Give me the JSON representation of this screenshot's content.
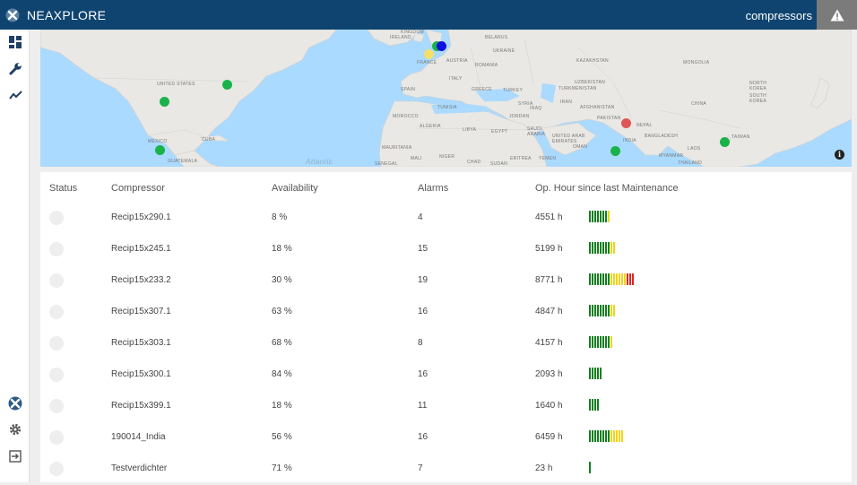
{
  "app": {
    "brand": "NEAXPLORE",
    "page_title": "compressors"
  },
  "sidebar": {
    "items": [
      {
        "icon": "dashboard-icon"
      },
      {
        "icon": "wrench-icon"
      },
      {
        "icon": "trend-icon"
      },
      {
        "icon": "logo-icon"
      },
      {
        "icon": "gear-icon"
      },
      {
        "icon": "logout-icon"
      }
    ]
  },
  "map": {
    "labels": {
      "united_states": "UNITED\nSTATES",
      "mexico": "MEXICO",
      "cuba": "CUBA",
      "guatemala": "GUATEMALA",
      "ireland": "IRELAND",
      "kingdom": "KINGDOM",
      "belarus": "BELARUS",
      "ukraine": "UKRAINE",
      "france": "FRANCE",
      "austria": "AUSTRIA",
      "romania": "ROMANIA",
      "spain": "SPAIN",
      "italy": "ITALY",
      "greece": "GREECE",
      "turkey": "TURKEY",
      "tunisia": "TUNISIA",
      "syria": "SYRIA",
      "iraq": "IRAQ",
      "jordan": "JORDAN",
      "morocco": "MOROCCO",
      "algeria": "ALGERIA",
      "libya": "LIBYA",
      "egypt": "EGYPT",
      "saudi_arabia": "SAUDI\nARABIA",
      "mauritania": "MAURITANIA",
      "mali": "MALI",
      "niger": "NIGER",
      "chad": "CHAD",
      "sudan": "SUDAN",
      "eritrea": "ERITREA",
      "yemen": "YEMEN",
      "senegal": "SENEGAL",
      "kazakhstan": "KAZAKHSTAN",
      "uzbekistan": "UZBEKISTAN",
      "turkmenistan": "TURKMENISTAN",
      "iran": "IRAN",
      "afghanistan": "AFGHANISTAN",
      "pakistan": "PAKISTAN",
      "nepal": "NEPAL",
      "india": "INDIA",
      "bangladesh": "BANGLADESH",
      "uae": "UNITED ARAB\nEMIRATES",
      "oman": "OMAN",
      "mongolia": "MONGOLIA",
      "china": "CHINA",
      "north_korea": "NORTH\nKOREA",
      "south_korea": "SOUTH\nKOREA",
      "taiwan": "TAIWAN",
      "myanmar": "MYANMAR",
      "laos": "LAOS",
      "thailand": "THAILAND",
      "atlantic": "Atlantic"
    },
    "markers": [
      {
        "name": "marker-us-central",
        "color": "#1ab24a"
      },
      {
        "name": "marker-us-east",
        "color": "#1ab24a"
      },
      {
        "name": "marker-mexico",
        "color": "#1ab24a"
      },
      {
        "name": "marker-france",
        "color": "#f3e06b"
      },
      {
        "name": "marker-europe-green",
        "color": "#1ab24a"
      },
      {
        "name": "marker-europe-blue",
        "color": "#1010e0"
      },
      {
        "name": "marker-pakistan",
        "color": "#e05555"
      },
      {
        "name": "marker-india",
        "color": "#1ab24a"
      },
      {
        "name": "marker-china",
        "color": "#1ab24a"
      }
    ],
    "info_label": "i"
  },
  "table": {
    "headers": {
      "status": "Status",
      "compressor": "Compressor",
      "availability": "Availability",
      "alarms": "Alarms",
      "op_hours": "Op. Hour since last Maintenance"
    },
    "rows": [
      {
        "compressor": "Recip15x290.1",
        "availability": "8 %",
        "alarms": "4",
        "hours": "4551 h",
        "green": 7,
        "yellow": 1,
        "red": 0
      },
      {
        "compressor": "Recip15x245.1",
        "availability": "18 %",
        "alarms": "15",
        "hours": "5199 h",
        "green": 8,
        "yellow": 2,
        "red": 0
      },
      {
        "compressor": "Recip15x233.2",
        "availability": "30 %",
        "alarms": "19",
        "hours": "8771 h",
        "green": 8,
        "yellow": 6,
        "red": 3
      },
      {
        "compressor": "Recip15x307.1",
        "availability": "63 %",
        "alarms": "16",
        "hours": "4847 h",
        "green": 8,
        "yellow": 2,
        "red": 0
      },
      {
        "compressor": "Recip15x303.1",
        "availability": "68 %",
        "alarms": "8",
        "hours": "4157 h",
        "green": 8,
        "yellow": 1,
        "red": 0
      },
      {
        "compressor": "Recip15x300.1",
        "availability": "84 %",
        "alarms": "16",
        "hours": "2093 h",
        "green": 5,
        "yellow": 0,
        "red": 0
      },
      {
        "compressor": "Recip15x399.1",
        "availability": "18 %",
        "alarms": "11",
        "hours": "1640 h",
        "green": 4,
        "yellow": 0,
        "red": 0
      },
      {
        "compressor": "190014_India",
        "availability": "56 %",
        "alarms": "16",
        "hours": "6459 h",
        "green": 8,
        "yellow": 5,
        "red": 0
      },
      {
        "compressor": "Testverdichter",
        "availability": "71 %",
        "alarms": "7",
        "hours": "23 h",
        "green": 1,
        "yellow": 0,
        "red": 0
      }
    ]
  },
  "colors": {
    "header_bg": "#0f4470",
    "bar_green": "#12801e",
    "bar_yellow": "#f2d31b",
    "bar_red": "#e02424"
  }
}
